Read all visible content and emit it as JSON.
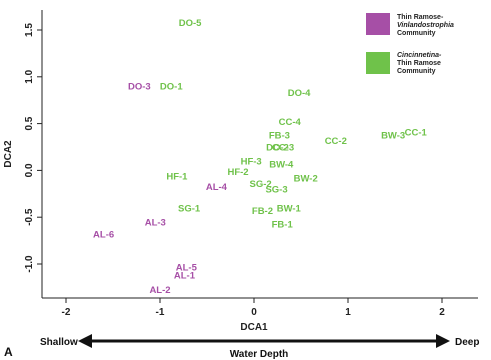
{
  "chart_data": {
    "type": "scatter",
    "xlabel": "DCA1",
    "ylabel": "DCA2",
    "xlim": [
      -2.2,
      2.3
    ],
    "ylim": [
      -1.4,
      1.6
    ],
    "x_ticks": [
      "-2",
      "-1",
      "0",
      "1",
      "2"
    ],
    "y_ticks": [
      "1.5",
      "1.0",
      "0.5",
      "0.0",
      "-0.5",
      "-1.0"
    ],
    "grid": false,
    "legend_position": "top-right",
    "series": [
      {
        "legend_parts": [
          "Thin Ramose-",
          "Vinlandostrophia",
          "Community"
        ],
        "color": "#a64fa6",
        "points": [
          {
            "label": "DO-3",
            "x": -1.22,
            "y": 0.9
          },
          {
            "label": "AL-4",
            "x": -0.4,
            "y": -0.17
          },
          {
            "label": "AL-3",
            "x": -1.05,
            "y": -0.55
          },
          {
            "label": "AL-6",
            "x": -1.6,
            "y": -0.68
          },
          {
            "label": "AL-5",
            "x": -0.72,
            "y": -1.03
          },
          {
            "label": "AL-1",
            "x": -0.74,
            "y": -1.12
          },
          {
            "label": "AL-2",
            "x": -1.0,
            "y": -1.27
          }
        ]
      },
      {
        "legend_parts": [
          "Cincinnetina-",
          "Thin Ramose",
          "Community"
        ],
        "color": "#6fc24a",
        "points": [
          {
            "label": "DO-5",
            "x": -0.68,
            "y": 1.58
          },
          {
            "label": "DO-1",
            "x": -0.88,
            "y": 0.9
          },
          {
            "label": "DO-4",
            "x": 0.48,
            "y": 0.83
          },
          {
            "label": "CC-4",
            "x": 0.38,
            "y": 0.52
          },
          {
            "label": "CC-1",
            "x": 1.72,
            "y": 0.41
          },
          {
            "label": "BW-3",
            "x": 1.48,
            "y": 0.38
          },
          {
            "label": "FB-3",
            "x": 0.27,
            "y": 0.38
          },
          {
            "label": "CC-2",
            "x": 0.87,
            "y": 0.32
          },
          {
            "label": "DO-2",
            "x": 0.25,
            "y": 0.25
          },
          {
            "label": "CC-3",
            "x": 0.31,
            "y": 0.25
          },
          {
            "label": "HF-3",
            "x": -0.03,
            "y": 0.1
          },
          {
            "label": "BW-4",
            "x": 0.29,
            "y": 0.07
          },
          {
            "label": "HF-2",
            "x": -0.17,
            "y": -0.01
          },
          {
            "label": "HF-1",
            "x": -0.82,
            "y": -0.06
          },
          {
            "label": "BW-2",
            "x": 0.55,
            "y": -0.08
          },
          {
            "label": "SG-2",
            "x": 0.07,
            "y": -0.14
          },
          {
            "label": "SG-3",
            "x": 0.24,
            "y": -0.2
          },
          {
            "label": "SG-1",
            "x": -0.69,
            "y": -0.4
          },
          {
            "label": "BW-1",
            "x": 0.37,
            "y": -0.4
          },
          {
            "label": "FB-2",
            "x": 0.09,
            "y": -0.43
          },
          {
            "label": "FB-1",
            "x": 0.3,
            "y": -0.57
          }
        ]
      }
    ]
  },
  "annotations": {
    "shallow": "Shallow",
    "deep": "Deep",
    "gradient": "Water Depth",
    "panel": "A"
  }
}
